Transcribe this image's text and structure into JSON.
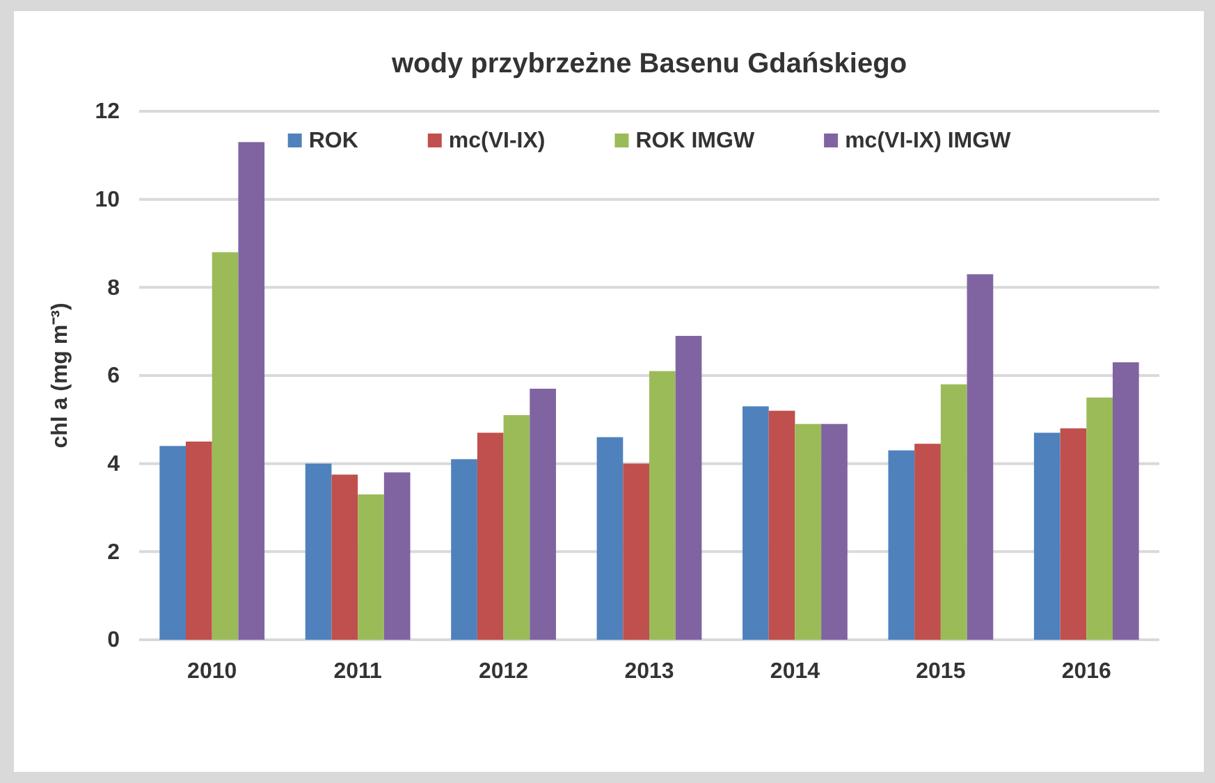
{
  "chart_data": {
    "type": "bar",
    "title": "wody przybrzeżne Basenu Gdańskiego",
    "ylabel": "chl a (mg m⁻³)",
    "categories": [
      "2010",
      "2011",
      "2012",
      "2013",
      "2014",
      "2015",
      "2016"
    ],
    "series": [
      {
        "name": "ROK",
        "color": "#4f81bd",
        "values": [
          4.4,
          4.0,
          4.1,
          4.6,
          5.3,
          4.3,
          4.7
        ]
      },
      {
        "name": "mc(VI-IX)",
        "color": "#c0504d",
        "values": [
          4.5,
          3.75,
          4.7,
          4.0,
          5.2,
          4.45,
          4.8
        ]
      },
      {
        "name": "ROK IMGW",
        "color": "#9bbb59",
        "values": [
          8.8,
          3.3,
          5.1,
          6.1,
          4.9,
          5.8,
          5.5
        ]
      },
      {
        "name": "mc(VI-IX) IMGW",
        "color": "#8064a2",
        "values": [
          11.3,
          3.8,
          5.7,
          6.9,
          4.9,
          8.3,
          6.3
        ]
      }
    ],
    "ylim": [
      0,
      12
    ],
    "yticks": [
      0,
      2,
      4,
      6,
      8,
      10,
      12
    ],
    "grid": "y",
    "legend": "top"
  }
}
